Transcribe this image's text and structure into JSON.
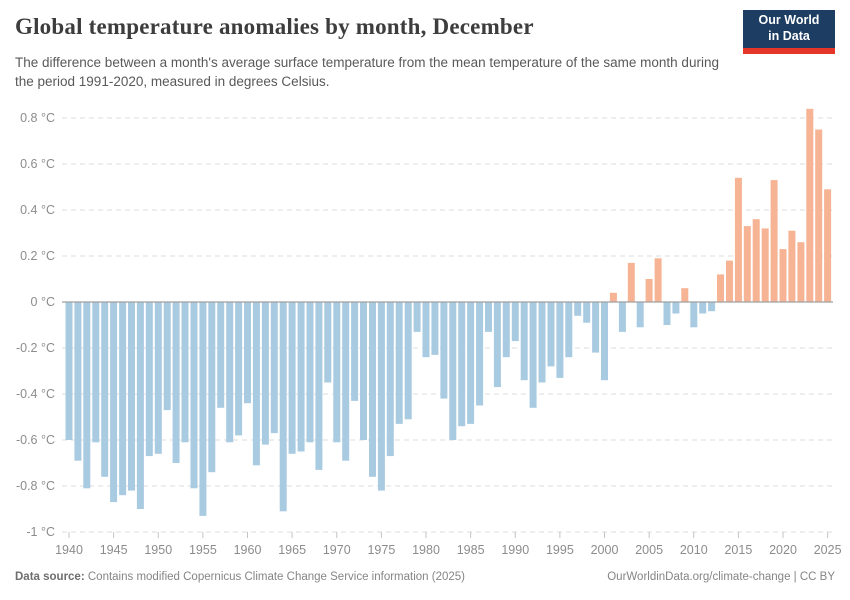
{
  "header": {
    "title": "Global temperature anomalies by month, December",
    "subtitle": "The difference between a month's average surface temperature from the mean temperature of the same month during the period 1991-2020, measured in degrees Celsius.",
    "logo": {
      "line1": "Our World",
      "line2": "in Data"
    }
  },
  "chart_data": {
    "type": "bar",
    "title": "Global temperature anomalies by month, December",
    "xlabel": "",
    "ylabel": "degrees Celsius",
    "ylim": [
      -1.0,
      0.9
    ],
    "grid": "horizontal dashed, solid zero line",
    "legend_position": "none",
    "y_tick_labels": [
      "0.8 °C",
      "0.6 °C",
      "0.4 °C",
      "0.2 °C",
      "0 °C",
      "-0.2 °C",
      "-0.4 °C",
      "-0.6 °C",
      "-0.8 °C",
      "-1 °C"
    ],
    "y_tick_values": [
      0.8,
      0.6,
      0.4,
      0.2,
      0,
      -0.2,
      -0.4,
      -0.6,
      -0.8,
      -1.0
    ],
    "x_tick_labels": [
      "1940",
      "1945",
      "1950",
      "1955",
      "1960",
      "1965",
      "1970",
      "1975",
      "1980",
      "1985",
      "1990",
      "1995",
      "2000",
      "2005",
      "2010",
      "2015",
      "2020",
      "2025"
    ],
    "x": [
      1940,
      1941,
      1942,
      1943,
      1944,
      1945,
      1946,
      1947,
      1948,
      1949,
      1950,
      1951,
      1952,
      1953,
      1954,
      1955,
      1956,
      1957,
      1958,
      1959,
      1960,
      1961,
      1962,
      1963,
      1964,
      1965,
      1966,
      1967,
      1968,
      1969,
      1970,
      1971,
      1972,
      1973,
      1974,
      1975,
      1976,
      1977,
      1978,
      1979,
      1980,
      1981,
      1982,
      1983,
      1984,
      1985,
      1986,
      1987,
      1988,
      1989,
      1990,
      1991,
      1992,
      1993,
      1994,
      1995,
      1996,
      1997,
      1998,
      1999,
      2000,
      2001,
      2002,
      2003,
      2004,
      2005,
      2006,
      2007,
      2008,
      2009,
      2010,
      2011,
      2012,
      2013,
      2014,
      2015,
      2016,
      2017,
      2018,
      2019,
      2020,
      2021,
      2022,
      2023,
      2024,
      2025
    ],
    "values": [
      -0.6,
      -0.69,
      -0.81,
      -0.61,
      -0.76,
      -0.87,
      -0.84,
      -0.82,
      -0.9,
      -0.67,
      -0.66,
      -0.47,
      -0.7,
      -0.61,
      -0.81,
      -0.93,
      -0.74,
      -0.46,
      -0.61,
      -0.58,
      -0.44,
      -0.71,
      -0.62,
      -0.57,
      -0.91,
      -0.66,
      -0.65,
      -0.61,
      -0.73,
      -0.35,
      -0.61,
      -0.69,
      -0.43,
      -0.6,
      -0.76,
      -0.82,
      -0.67,
      -0.53,
      -0.51,
      -0.13,
      -0.24,
      -0.23,
      -0.42,
      -0.6,
      -0.54,
      -0.53,
      -0.45,
      -0.13,
      -0.37,
      -0.24,
      -0.17,
      -0.34,
      -0.46,
      -0.35,
      -0.28,
      -0.33,
      -0.24,
      -0.06,
      -0.09,
      -0.22,
      -0.34,
      0.04,
      -0.13,
      0.17,
      -0.11,
      0.1,
      0.19,
      -0.1,
      -0.05,
      0.06,
      -0.11,
      -0.05,
      -0.04,
      0.12,
      0.18,
      0.54,
      0.33,
      0.36,
      0.32,
      0.53,
      0.23,
      0.31,
      0.26,
      0.84,
      0.75,
      0.49
    ],
    "colors": {
      "positive": "#f6b495",
      "negative": "#a9cbe2",
      "zero_line": "#a0a0a0",
      "gridline": "#dcdcdc",
      "axis_text": "#8c8c8c"
    }
  },
  "footer": {
    "datasource_label": "Data source:",
    "datasource_text": " Contains modified Copernicus Climate Change Service information (2025)",
    "attribution": "OurWorldinData.org/climate-change | CC BY"
  }
}
